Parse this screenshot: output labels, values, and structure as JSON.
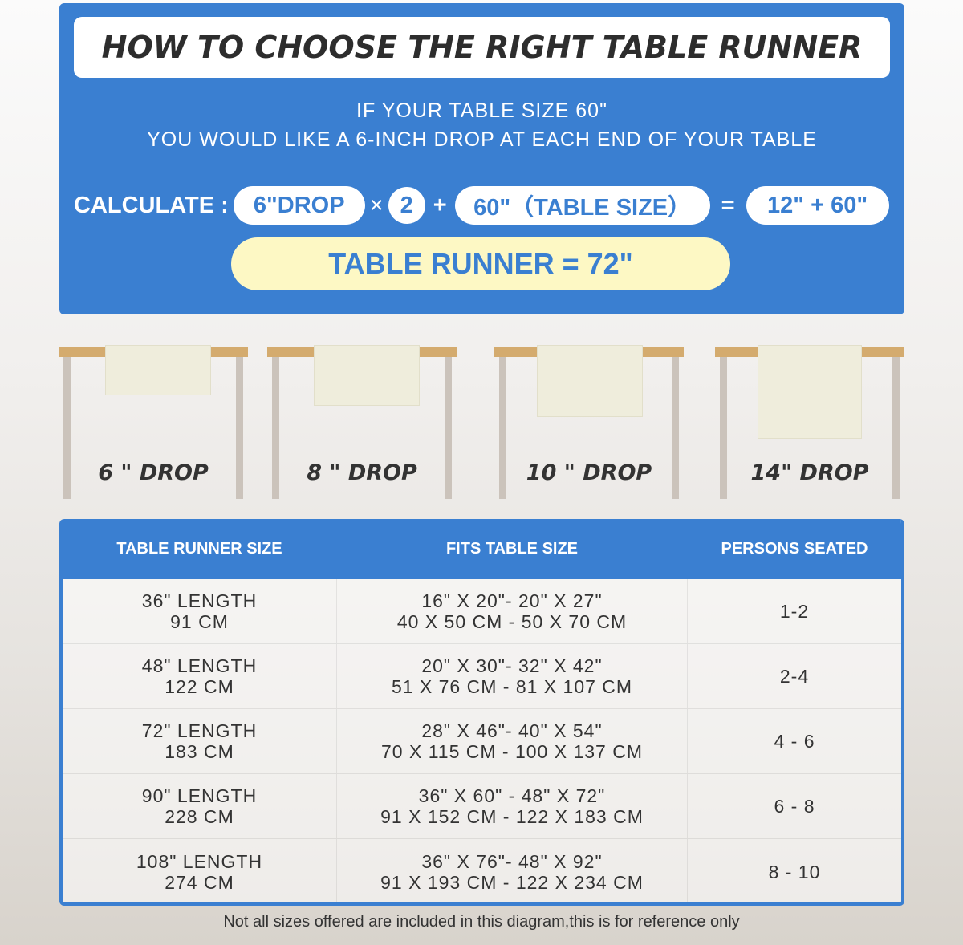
{
  "header": {
    "title": "HOW TO CHOOSE THE RIGHT TABLE RUNNER",
    "line1": "IF YOUR TABLE SIZE 60\"",
    "line2": "YOU WOULD LIKE A 6-INCH DROP AT EACH END OF YOUR TABLE"
  },
  "calc": {
    "label": "CALCULATE :",
    "drop": "6\"DROP",
    "times": "×",
    "two": "2",
    "plus": "+",
    "table": "60\"（TABLE SIZE）",
    "equals": "=",
    "sum": "12\" + 60\"",
    "result": "TABLE RUNNER = 72\""
  },
  "drops": [
    {
      "label": "6 \" DROP",
      "inches": 6
    },
    {
      "label": "8 \" DROP",
      "inches": 8
    },
    {
      "label": "10 \" DROP",
      "inches": 10
    },
    {
      "label": "14\" DROP",
      "inches": 14
    }
  ],
  "table": {
    "headers": [
      "TABLE RUNNER SIZE",
      "FITS TABLE SIZE",
      "PERSONS SEATED"
    ],
    "rows": [
      {
        "size": [
          "36\" LENGTH",
          "91 CM"
        ],
        "fits": [
          "16\" X 20\"- 20\" X 27\"",
          "40 X 50 CM - 50 X 70 CM"
        ],
        "persons": "1-2"
      },
      {
        "size": [
          "48\" LENGTH",
          "122 CM"
        ],
        "fits": [
          "20\" X 30\"- 32\" X 42\"",
          "51 X 76 CM - 81 X 107 CM"
        ],
        "persons": "2-4"
      },
      {
        "size": [
          "72\" LENGTH",
          "183 CM"
        ],
        "fits": [
          "28\" X 46\"- 40\" X 54\"",
          "70 X 115 CM - 100 X 137 CM"
        ],
        "persons": "4 - 6"
      },
      {
        "size": [
          "90\" LENGTH",
          "228 CM"
        ],
        "fits": [
          "36\" X 60\" - 48\" X 72\"",
          "91 X 152 CM - 122 X 183 CM"
        ],
        "persons": "6 - 8"
      },
      {
        "size": [
          "108\" LENGTH",
          "274 CM"
        ],
        "fits": [
          "36\" X 76\"- 48\" X 92\"",
          "91 X 193 CM - 122 X 234 CM"
        ],
        "persons": "8 - 10"
      }
    ]
  },
  "footnote": "Not all sizes offered are included in this diagram,this is for reference only",
  "colors": {
    "blue": "#3a7fd1",
    "yellow": "#fdf8c4",
    "wood": "#d4ab6e",
    "runner": "#efeddc"
  }
}
